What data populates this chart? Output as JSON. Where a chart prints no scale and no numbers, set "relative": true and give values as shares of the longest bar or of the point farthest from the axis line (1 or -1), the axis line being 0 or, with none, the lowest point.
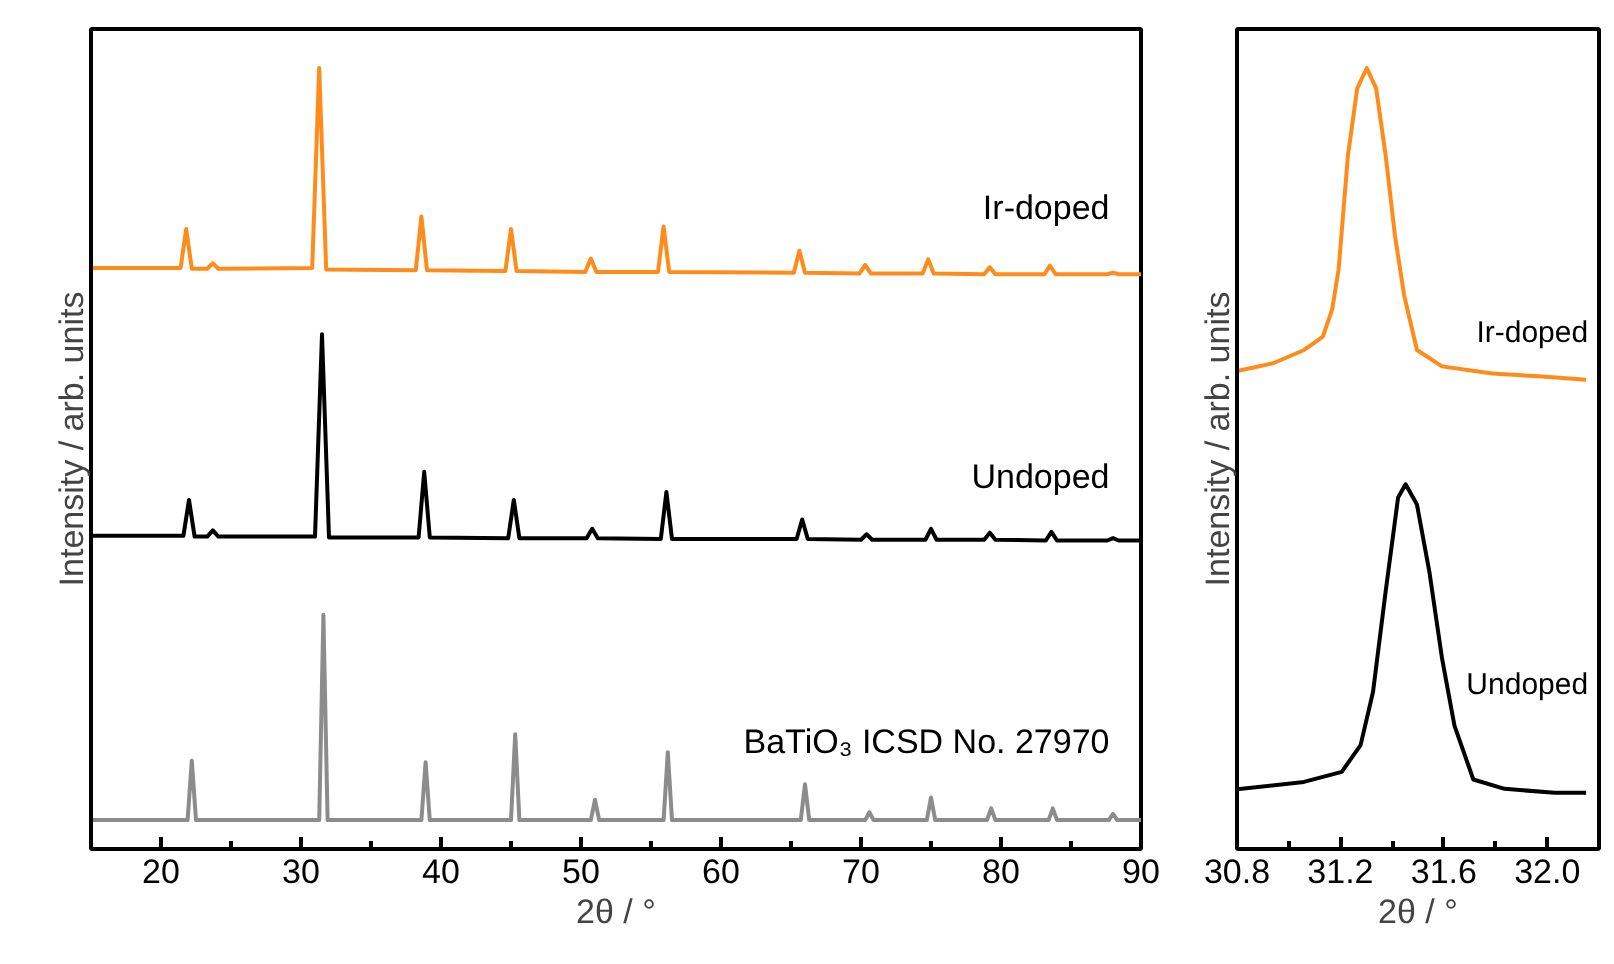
{
  "chart_data": [
    {
      "type": "line",
      "relative": true,
      "xlabel": "2θ / °",
      "ylabel": "Intensity / arb. units",
      "tick_labels": "x",
      "xlim": [
        15,
        90
      ],
      "xticks": [
        20,
        {
          "value": 25,
          "label": null
        },
        30,
        {
          "value": 35,
          "label": null
        },
        40,
        {
          "value": 45,
          "label": null
        },
        50,
        {
          "value": 55,
          "label": null
        },
        60,
        {
          "value": 65,
          "label": null
        },
        70,
        {
          "value": 75,
          "label": null
        },
        80,
        {
          "value": 85,
          "label": null
        },
        90
      ],
      "series": [
        {
          "name": "Ir-doped",
          "color": "#ff8c1a",
          "x": [
            15,
            21.4,
            21.8,
            22.2,
            23.3,
            23.7,
            24.1,
            30.8,
            31.3,
            31.8,
            38.2,
            38.6,
            39.0,
            44.6,
            45.0,
            45.4,
            50.3,
            50.7,
            51.1,
            55.5,
            55.9,
            56.3,
            65.2,
            65.6,
            66.0,
            69.9,
            70.3,
            70.7,
            74.4,
            74.8,
            75.2,
            78.8,
            79.2,
            79.6,
            83.1,
            83.5,
            83.9,
            87.6,
            88.0,
            88.4,
            90
          ],
          "values": [
            0.744,
            0.744,
            0.794,
            0.743,
            0.743,
            0.75,
            0.743,
            0.744,
            1.0,
            0.742,
            0.741,
            0.81,
            0.741,
            0.74,
            0.794,
            0.74,
            0.739,
            0.756,
            0.739,
            0.739,
            0.797,
            0.739,
            0.738,
            0.766,
            0.738,
            0.737,
            0.748,
            0.737,
            0.737,
            0.755,
            0.737,
            0.736,
            0.745,
            0.736,
            0.736,
            0.747,
            0.736,
            0.736,
            0.738,
            0.736,
            0.736
          ]
        },
        {
          "name": "Undoped",
          "color": "#000000",
          "x": [
            15,
            21.6,
            22.0,
            22.4,
            23.3,
            23.7,
            24.1,
            31.0,
            31.5,
            32.0,
            38.4,
            38.8,
            39.2,
            44.8,
            45.2,
            45.6,
            50.4,
            50.8,
            51.2,
            55.7,
            56.1,
            56.5,
            65.4,
            65.8,
            66.2,
            70.0,
            70.4,
            70.8,
            74.6,
            75.0,
            75.4,
            78.8,
            79.2,
            79.6,
            83.2,
            83.6,
            84.0,
            87.6,
            88.0,
            88.4,
            90
          ],
          "values": [
            0.401,
            0.401,
            0.447,
            0.4,
            0.4,
            0.408,
            0.4,
            0.4,
            0.659,
            0.399,
            0.399,
            0.483,
            0.399,
            0.398,
            0.447,
            0.398,
            0.398,
            0.41,
            0.398,
            0.397,
            0.457,
            0.397,
            0.397,
            0.422,
            0.397,
            0.396,
            0.403,
            0.396,
            0.396,
            0.41,
            0.396,
            0.396,
            0.405,
            0.396,
            0.395,
            0.406,
            0.395,
            0.395,
            0.398,
            0.395,
            0.395
          ]
        },
        {
          "name": "BaTiO₃ ICSD No. 27970",
          "color": "#8c8c8c",
          "x": [
            15,
            21.9,
            22.2,
            22.5,
            31.3,
            31.6,
            31.9,
            38.6,
            38.9,
            39.2,
            45.0,
            45.3,
            45.6,
            50.7,
            51.0,
            51.3,
            55.9,
            56.2,
            56.5,
            65.7,
            66.0,
            66.3,
            70.3,
            70.6,
            70.9,
            74.7,
            75.0,
            75.3,
            79.0,
            79.3,
            79.6,
            83.4,
            83.7,
            84.0,
            87.7,
            88.0,
            88.3,
            90
          ],
          "values": [
            0.037,
            0.037,
            0.113,
            0.037,
            0.037,
            0.3,
            0.037,
            0.037,
            0.111,
            0.037,
            0.037,
            0.147,
            0.037,
            0.037,
            0.063,
            0.037,
            0.037,
            0.124,
            0.037,
            0.037,
            0.083,
            0.037,
            0.037,
            0.047,
            0.037,
            0.037,
            0.066,
            0.037,
            0.037,
            0.052,
            0.037,
            0.037,
            0.052,
            0.037,
            0.037,
            0.045,
            0.037,
            0.037
          ]
        }
      ]
    },
    {
      "type": "line",
      "relative": true,
      "xlabel": "2θ / °",
      "ylabel": "Intensity / arb. units",
      "tick_labels": "x",
      "xlim": [
        30.8,
        32.2
      ],
      "xticks": [
        30.8,
        {
          "value": 31.0,
          "label": null
        },
        31.2,
        {
          "value": 31.4,
          "label": null
        },
        31.6,
        {
          "value": 31.8,
          "label": null
        },
        {
          "value": 32.0,
          "label": "32.0"
        }
      ],
      "series": [
        {
          "name": "Ir-doped",
          "color": "#ff8c1a",
          "x": [
            30.8,
            30.94,
            31.06,
            31.132,
            31.168,
            31.193,
            31.229,
            31.265,
            31.302,
            31.338,
            31.375,
            31.411,
            31.447,
            31.496,
            31.593,
            31.787,
            31.98,
            32.15
          ],
          "values": [
            0.612,
            0.622,
            0.639,
            0.656,
            0.691,
            0.742,
            0.888,
            0.974,
            1.0,
            0.974,
            0.888,
            0.785,
            0.708,
            0.639,
            0.618,
            0.609,
            0.605,
            0.601
          ]
        },
        {
          "name": "Undoped",
          "color": "#000000",
          "x": [
            30.8,
            31.059,
            31.205,
            31.278,
            31.326,
            31.375,
            31.423,
            31.452,
            31.496,
            31.544,
            31.593,
            31.641,
            31.714,
            31.835,
            32.029,
            32.15
          ],
          "values": [
            0.0765,
            0.0859,
            0.0988,
            0.133,
            0.201,
            0.33,
            0.45,
            0.467,
            0.441,
            0.355,
            0.244,
            0.158,
            0.089,
            0.077,
            0.072,
            0.072
          ]
        }
      ]
    }
  ]
}
